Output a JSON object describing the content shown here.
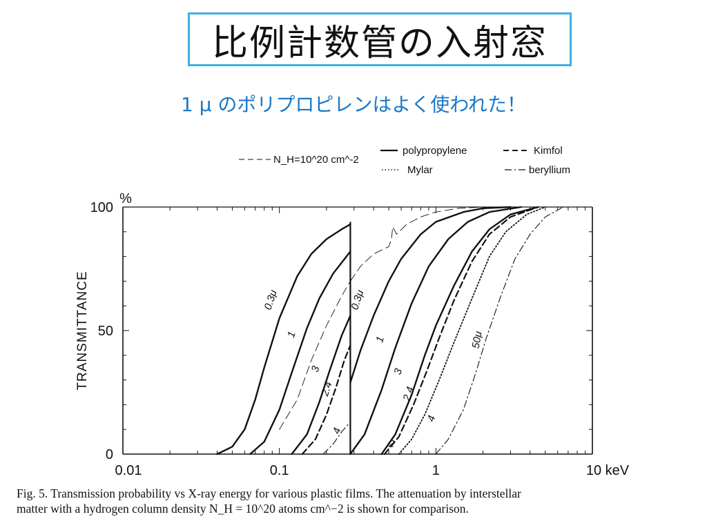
{
  "slide": {
    "title": "比例計数管の入射窓",
    "subtitle": "1 μ のポリプロピレンはよく使われた！",
    "caption_line1": "Fig. 5.    Transmission probability vs X-ray energy for various plastic films. The attenuation by interstellar",
    "caption_line2": "matter with a hydrogen column density N_H = 10^20 atoms cm^−2 is shown for comparison."
  },
  "chart_data": {
    "type": "line",
    "title": "",
    "xlabel": "keV",
    "ylabel": "TRANSMITTANCE",
    "y_unit": "%",
    "x_scale": "log",
    "xlim": [
      0.01,
      10
    ],
    "ylim": [
      0,
      100
    ],
    "x_ticks": [
      "0.01",
      "0.1",
      "1",
      "10 keV"
    ],
    "y_ticks": [
      "0",
      "50",
      "100"
    ],
    "legend": {
      "nh_label": "N_H=10^20 cm^-2",
      "polypropylene": "polypropylene",
      "kimfol": "Kimfol",
      "mylar": "Mylar",
      "beryllium": "beryllium"
    },
    "edge_energy_keV": 0.284,
    "series": [
      {
        "name": "polypropylene",
        "label": "0.3μ",
        "style": "solid",
        "x": [
          0.04,
          0.05,
          0.06,
          0.07,
          0.08,
          0.1,
          0.13,
          0.16,
          0.2,
          0.25,
          0.284
        ],
        "y": [
          0,
          3,
          10,
          22,
          35,
          55,
          72,
          81,
          87,
          91,
          93
        ]
      },
      {
        "name": "polypropylene",
        "label": "1",
        "style": "solid",
        "x": [
          0.065,
          0.08,
          0.1,
          0.12,
          0.15,
          0.18,
          0.22,
          0.284
        ],
        "y": [
          0,
          5,
          18,
          33,
          51,
          63,
          73,
          82
        ]
      },
      {
        "name": "polypropylene",
        "label": "3",
        "style": "solid",
        "x": [
          0.12,
          0.15,
          0.18,
          0.21,
          0.25,
          0.284
        ],
        "y": [
          0,
          8,
          21,
          34,
          48,
          56
        ]
      },
      {
        "name": "Kimfol",
        "label": "2.4",
        "style": "dashed",
        "x": [
          0.14,
          0.17,
          0.2,
          0.23,
          0.26,
          0.284
        ],
        "y": [
          0,
          6,
          16,
          27,
          38,
          44
        ]
      },
      {
        "name": "Mylar",
        "label": "4",
        "style": "dashdot",
        "x": [
          0.19,
          0.22,
          0.25,
          0.284
        ],
        "y": [
          0,
          4,
          9,
          13
        ]
      },
      {
        "name": "N_H=10^20 cm^-2",
        "label": "",
        "style": "longdash",
        "x": [
          0.1,
          0.13,
          0.16,
          0.2,
          0.25,
          0.284
        ],
        "y": [
          10,
          22,
          38,
          52,
          64,
          70
        ]
      },
      {
        "name": "polypropylene",
        "label": "0.3μ",
        "style": "solid",
        "x": [
          0.284,
          0.33,
          0.4,
          0.5,
          0.6,
          0.8,
          1,
          1.5,
          2,
          3
        ],
        "y": [
          29,
          42,
          56,
          70,
          79,
          89,
          94,
          98,
          99.5,
          100
        ]
      },
      {
        "name": "polypropylene",
        "label": "1",
        "style": "solid",
        "x": [
          0.284,
          0.35,
          0.45,
          0.55,
          0.7,
          0.9,
          1.2,
          1.6,
          2.2,
          3.5
        ],
        "y": [
          0,
          8,
          26,
          43,
          61,
          76,
          87,
          94,
          98,
          100
        ]
      },
      {
        "name": "polypropylene",
        "label": "3",
        "style": "solid",
        "x": [
          0.45,
          0.55,
          0.7,
          0.85,
          1,
          1.3,
          1.7,
          2.2,
          3,
          4.5
        ],
        "y": [
          0,
          8,
          24,
          40,
          52,
          68,
          82,
          91,
          97,
          100
        ]
      },
      {
        "name": "Kimfol",
        "label": "2.4",
        "style": "dashed",
        "x": [
          0.47,
          0.58,
          0.72,
          0.88,
          1.05,
          1.3,
          1.7,
          2.2,
          3,
          4.5
        ],
        "y": [
          0,
          7,
          20,
          34,
          47,
          62,
          78,
          89,
          96,
          100
        ]
      },
      {
        "name": "Mylar",
        "label": "4",
        "style": "dotted",
        "x": [
          0.58,
          0.7,
          0.85,
          1.05,
          1.3,
          1.7,
          2.2,
          2.8,
          3.8,
          5
        ],
        "y": [
          0,
          6,
          16,
          30,
          45,
          63,
          80,
          90,
          97,
          100
        ]
      },
      {
        "name": "beryllium",
        "label": "50μ",
        "style": "dashdot",
        "x": [
          1,
          1.2,
          1.5,
          1.8,
          2.1,
          2.6,
          3.2,
          4,
          5,
          6.5
        ],
        "y": [
          0,
          6,
          18,
          33,
          47,
          64,
          79,
          89,
          96,
          100
        ]
      },
      {
        "name": "N_H=10^20 cm^-2",
        "label": "",
        "style": "longdash",
        "x": [
          0.284,
          0.33,
          0.4,
          0.5,
          0.52,
          0.53,
          0.56,
          0.65,
          0.8,
          1,
          1.4,
          2
        ],
        "y": [
          70,
          76,
          81,
          84,
          87,
          92,
          89,
          93,
          96,
          98,
          99.5,
          100
        ]
      }
    ],
    "curve_labels": [
      {
        "text": "0.3μ",
        "x": 0.092,
        "y": 62,
        "angle": -72
      },
      {
        "text": "1",
        "x": 0.125,
        "y": 48,
        "angle": -72
      },
      {
        "text": "3",
        "x": 0.178,
        "y": 34,
        "angle": -72
      },
      {
        "text": "2.4",
        "x": 0.21,
        "y": 26,
        "angle": -72
      },
      {
        "text": "4",
        "x": 0.244,
        "y": 9,
        "angle": -72
      },
      {
        "text": "0.3μ",
        "x": 0.33,
        "y": 62,
        "angle": -72
      },
      {
        "text": "1",
        "x": 0.46,
        "y": 46,
        "angle": -72
      },
      {
        "text": "3",
        "x": 0.6,
        "y": 33,
        "angle": -72
      },
      {
        "text": "2.4",
        "x": 0.7,
        "y": 24,
        "angle": -72
      },
      {
        "text": "4",
        "x": 0.98,
        "y": 14,
        "angle": -72
      },
      {
        "text": "2",
        "x": 0.52,
        "y": 3,
        "angle": 0
      },
      {
        "text": "50μ",
        "x": 1.92,
        "y": 46,
        "angle": -80
      }
    ]
  }
}
